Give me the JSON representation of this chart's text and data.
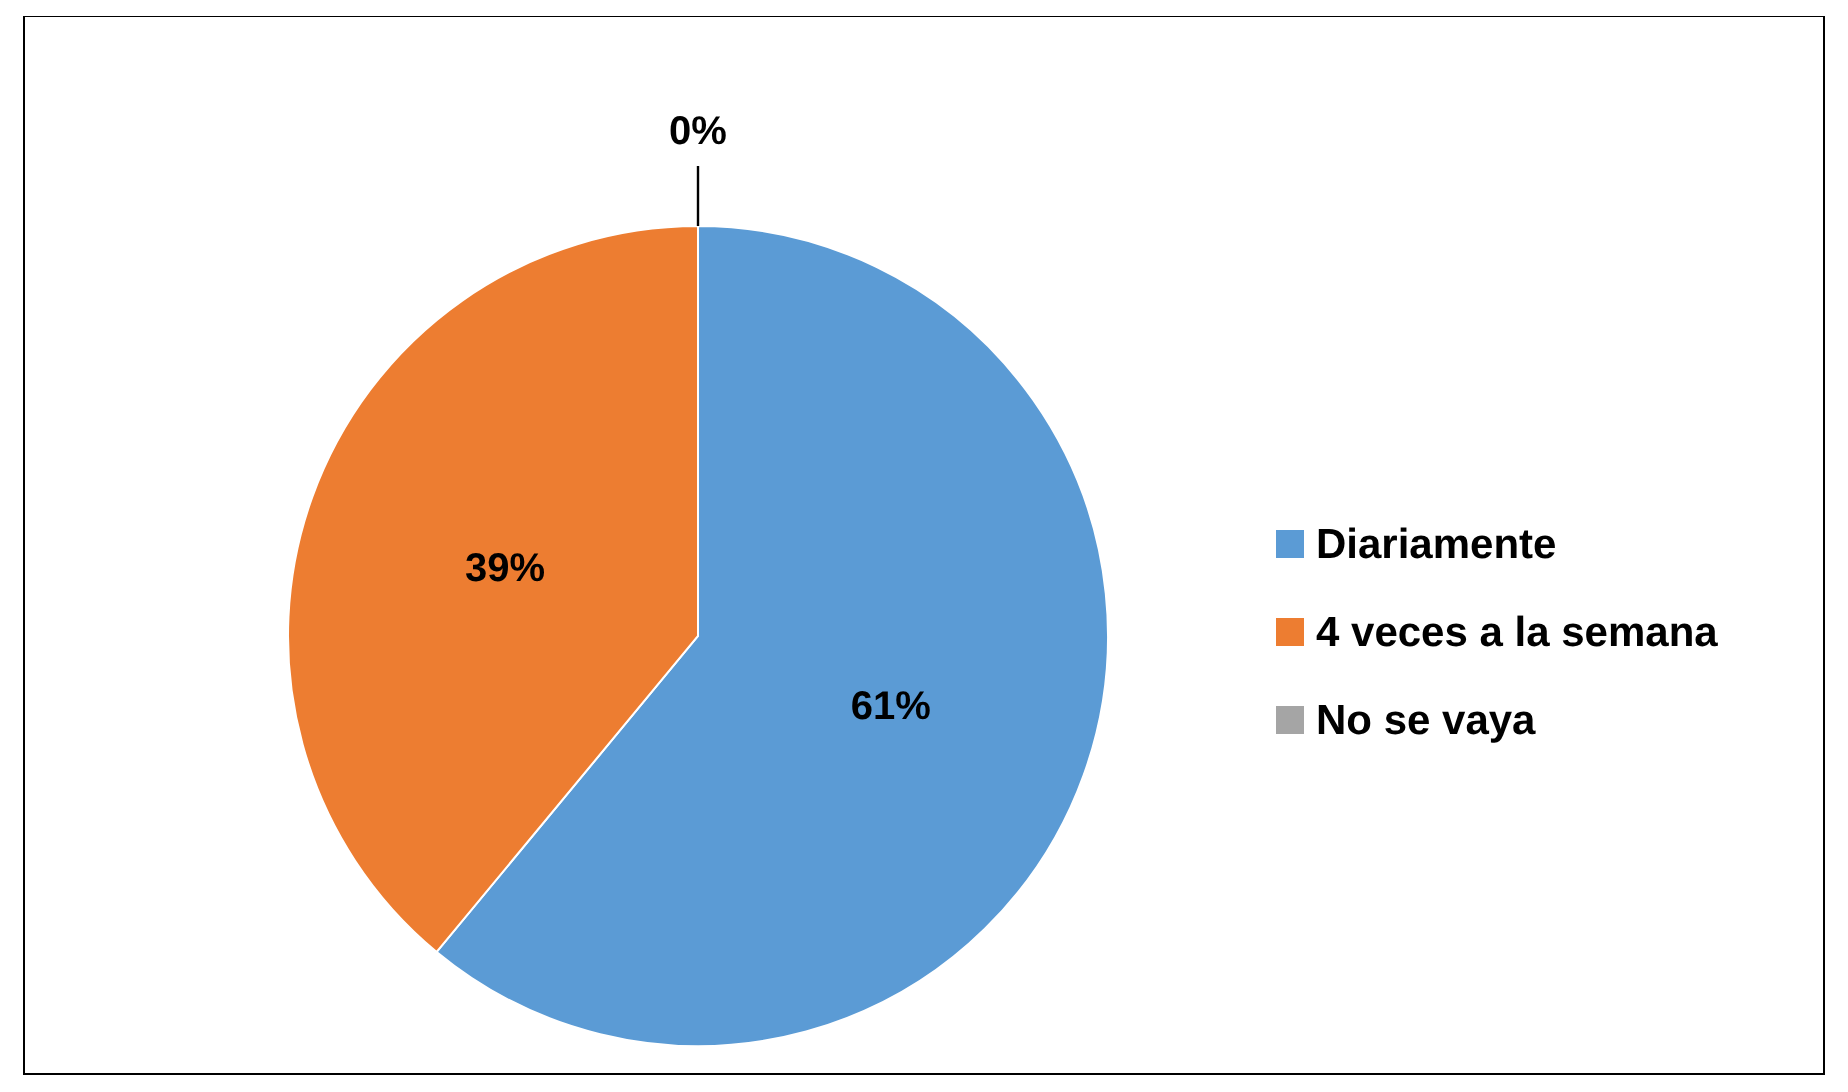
{
  "chart_data": {
    "type": "pie",
    "categories": [
      "Diariamente",
      "4 veces a la semana",
      "No se vaya"
    ],
    "values": [
      61,
      39,
      0
    ],
    "colors": [
      "#5b9bd5",
      "#ed7d31",
      "#a5a5a5"
    ],
    "value_labels": [
      "61%",
      "39%",
      "0%"
    ],
    "legend": "right"
  }
}
